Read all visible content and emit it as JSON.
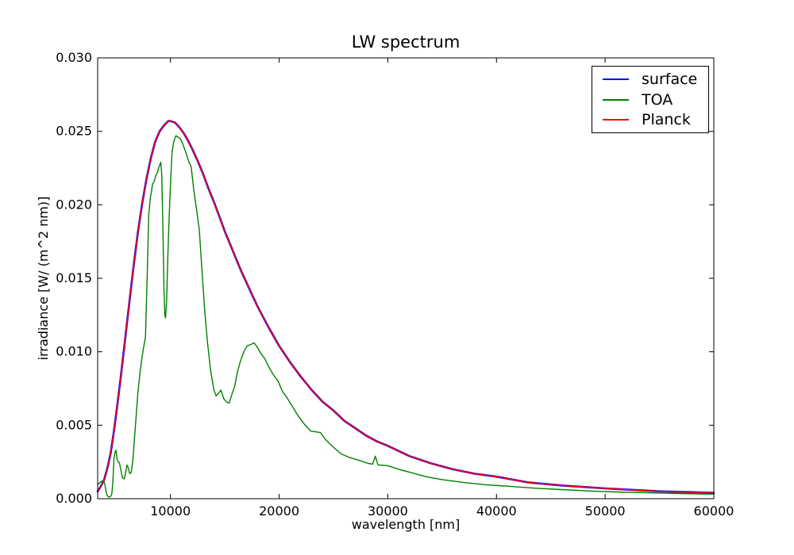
{
  "chart_data": {
    "type": "line",
    "title": "LW spectrum",
    "xlabel": "wavelength [nm]",
    "ylabel": "irradiance [W/ (m^2 nm)]",
    "xlim": [
      3300,
      60000
    ],
    "ylim": [
      0,
      0.03
    ],
    "grid": false,
    "ticks_direction": "in",
    "legend_position": "upper right",
    "x_ticks": [
      10000,
      20000,
      30000,
      40000,
      50000,
      60000
    ],
    "x_tick_labels": [
      "10000",
      "20000",
      "30000",
      "40000",
      "50000",
      "60000"
    ],
    "y_ticks": [
      0.0,
      0.005,
      0.01,
      0.015,
      0.02,
      0.025,
      0.03
    ],
    "y_tick_labels": [
      "0.000",
      "0.005",
      "0.010",
      "0.015",
      "0.020",
      "0.025",
      "0.030"
    ],
    "series": [
      {
        "name": "surface",
        "color": "#0000ff",
        "note": "coincides with Planck curve (hidden beneath it)",
        "points": [
          [
            3300,
            0.0005
          ],
          [
            3600,
            0.00085
          ],
          [
            3900,
            0.0013
          ],
          [
            4200,
            0.0021
          ],
          [
            4500,
            0.0031
          ],
          [
            4800,
            0.0046
          ],
          [
            5100,
            0.0063
          ],
          [
            5400,
            0.0081
          ],
          [
            5700,
            0.01
          ],
          [
            6000,
            0.012
          ],
          [
            6300,
            0.0139
          ],
          [
            6600,
            0.0158
          ],
          [
            7000,
            0.0181
          ],
          [
            7400,
            0.0201
          ],
          [
            7800,
            0.0218
          ],
          [
            8200,
            0.0232
          ],
          [
            8600,
            0.0243
          ],
          [
            9000,
            0.025
          ],
          [
            9400,
            0.0254
          ],
          [
            9800,
            0.0257
          ],
          [
            10000,
            0.0257
          ],
          [
            10400,
            0.0256
          ],
          [
            10800,
            0.0253
          ],
          [
            11200,
            0.0249
          ],
          [
            11600,
            0.0244
          ],
          [
            12000,
            0.0238
          ],
          [
            12500,
            0.023
          ],
          [
            13000,
            0.0221
          ],
          [
            13500,
            0.0211
          ],
          [
            14000,
            0.0202
          ],
          [
            14500,
            0.0192
          ],
          [
            15000,
            0.0182
          ],
          [
            15500,
            0.0173
          ],
          [
            16000,
            0.0164
          ],
          [
            16500,
            0.0155
          ],
          [
            17000,
            0.0147
          ],
          [
            17500,
            0.0139
          ],
          [
            18000,
            0.0131
          ],
          [
            19000,
            0.0117
          ],
          [
            20000,
            0.0104
          ],
          [
            21000,
            0.0093
          ],
          [
            22000,
            0.0083
          ],
          [
            23000,
            0.0074
          ],
          [
            24000,
            0.0066
          ],
          [
            25000,
            0.006
          ],
          [
            26000,
            0.0053
          ],
          [
            27000,
            0.0048
          ],
          [
            28000,
            0.0043
          ],
          [
            29000,
            0.0039
          ],
          [
            30000,
            0.0036
          ],
          [
            32000,
            0.0029
          ],
          [
            34000,
            0.0024
          ],
          [
            36000,
            0.002
          ],
          [
            38000,
            0.0017
          ],
          [
            40000,
            0.0015
          ],
          [
            43000,
            0.0011
          ],
          [
            46000,
            0.0009
          ],
          [
            50000,
            0.0007
          ],
          [
            55000,
            0.0005
          ],
          [
            60000,
            0.0004
          ]
        ]
      },
      {
        "name": "TOA",
        "color": "#008000",
        "points": [
          [
            3300,
            0.00095
          ],
          [
            3500,
            0.0011
          ],
          [
            3700,
            0.0012
          ],
          [
            3850,
            0.00125
          ],
          [
            3950,
            0.001
          ],
          [
            4050,
            0.0006
          ],
          [
            4150,
            0.00025
          ],
          [
            4300,
            0.00012
          ],
          [
            4450,
            0.00012
          ],
          [
            4600,
            0.0003
          ],
          [
            4700,
            0.0012
          ],
          [
            4800,
            0.0027
          ],
          [
            4900,
            0.0032
          ],
          [
            4980,
            0.0033
          ],
          [
            5100,
            0.00265
          ],
          [
            5200,
            0.0025
          ],
          [
            5300,
            0.00245
          ],
          [
            5450,
            0.0019
          ],
          [
            5600,
            0.0014
          ],
          [
            5750,
            0.00135
          ],
          [
            5900,
            0.0019
          ],
          [
            6000,
            0.0023
          ],
          [
            6100,
            0.00215
          ],
          [
            6250,
            0.0017
          ],
          [
            6400,
            0.0018
          ],
          [
            6550,
            0.0027
          ],
          [
            6700,
            0.0042
          ],
          [
            6850,
            0.0057
          ],
          [
            7000,
            0.0072
          ],
          [
            7200,
            0.0086
          ],
          [
            7400,
            0.0097
          ],
          [
            7550,
            0.0104
          ],
          [
            7700,
            0.011
          ],
          [
            7850,
            0.015
          ],
          [
            8000,
            0.0193
          ],
          [
            8150,
            0.0205
          ],
          [
            8250,
            0.0209
          ],
          [
            8350,
            0.0214
          ],
          [
            8500,
            0.0216
          ],
          [
            8650,
            0.022
          ],
          [
            8800,
            0.0222
          ],
          [
            8950,
            0.0226
          ],
          [
            9100,
            0.0229
          ],
          [
            9200,
            0.0221
          ],
          [
            9300,
            0.0185
          ],
          [
            9400,
            0.0143
          ],
          [
            9480,
            0.0125
          ],
          [
            9550,
            0.0123
          ],
          [
            9650,
            0.0135
          ],
          [
            9750,
            0.0163
          ],
          [
            9850,
            0.0185
          ],
          [
            9950,
            0.0205
          ],
          [
            10050,
            0.0222
          ],
          [
            10150,
            0.0236
          ],
          [
            10300,
            0.0243
          ],
          [
            10500,
            0.0247
          ],
          [
            10700,
            0.0246
          ],
          [
            10900,
            0.0245
          ],
          [
            11100,
            0.0242
          ],
          [
            11400,
            0.0236
          ],
          [
            11700,
            0.0229
          ],
          [
            11900,
            0.0226
          ],
          [
            12150,
            0.021
          ],
          [
            12400,
            0.0197
          ],
          [
            12650,
            0.0183
          ],
          [
            12900,
            0.0155
          ],
          [
            13150,
            0.0128
          ],
          [
            13400,
            0.0107
          ],
          [
            13700,
            0.0087
          ],
          [
            14000,
            0.0074
          ],
          [
            14200,
            0.007
          ],
          [
            14450,
            0.0072
          ],
          [
            14650,
            0.0074
          ],
          [
            14900,
            0.0068
          ],
          [
            15150,
            0.0066
          ],
          [
            15400,
            0.0065
          ],
          [
            15650,
            0.0071
          ],
          [
            15900,
            0.0076
          ],
          [
            16150,
            0.0086
          ],
          [
            16450,
            0.0094
          ],
          [
            16750,
            0.01
          ],
          [
            17050,
            0.0104
          ],
          [
            17400,
            0.0105
          ],
          [
            17700,
            0.0106
          ],
          [
            18000,
            0.0103
          ],
          [
            18300,
            0.0099
          ],
          [
            18700,
            0.0095
          ],
          [
            19100,
            0.0089
          ],
          [
            19500,
            0.0084
          ],
          [
            19900,
            0.008
          ],
          [
            20300,
            0.0073
          ],
          [
            20700,
            0.0069
          ],
          [
            21200,
            0.0063
          ],
          [
            21700,
            0.0057
          ],
          [
            22300,
            0.0051
          ],
          [
            22900,
            0.0046
          ],
          [
            23400,
            0.00455
          ],
          [
            23800,
            0.0045
          ],
          [
            24300,
            0.004
          ],
          [
            25000,
            0.0035
          ],
          [
            25700,
            0.00305
          ],
          [
            26500,
            0.0028
          ],
          [
            27400,
            0.0026
          ],
          [
            28200,
            0.0024
          ],
          [
            28600,
            0.00235
          ],
          [
            28850,
            0.0029
          ],
          [
            29100,
            0.0023
          ],
          [
            30000,
            0.00225
          ],
          [
            31000,
            0.002
          ],
          [
            32000,
            0.0018
          ],
          [
            33500,
            0.0015
          ],
          [
            35000,
            0.0013
          ],
          [
            37000,
            0.0011
          ],
          [
            39000,
            0.00095
          ],
          [
            41000,
            0.00085
          ],
          [
            43500,
            0.00072
          ],
          [
            46000,
            0.00062
          ],
          [
            48500,
            0.00053
          ],
          [
            51000,
            0.00046
          ],
          [
            54000,
            0.0004
          ],
          [
            57000,
            0.00035
          ],
          [
            60000,
            0.00031
          ]
        ]
      },
      {
        "name": "Planck",
        "color": "#ff0000",
        "points": [
          [
            3300,
            0.0005
          ],
          [
            3600,
            0.00085
          ],
          [
            3900,
            0.0013
          ],
          [
            4200,
            0.0021
          ],
          [
            4500,
            0.0031
          ],
          [
            4800,
            0.0046
          ],
          [
            5100,
            0.0063
          ],
          [
            5400,
            0.0081
          ],
          [
            5700,
            0.01
          ],
          [
            6000,
            0.012
          ],
          [
            6300,
            0.0139
          ],
          [
            6600,
            0.0158
          ],
          [
            7000,
            0.0181
          ],
          [
            7400,
            0.0201
          ],
          [
            7800,
            0.0218
          ],
          [
            8200,
            0.0232
          ],
          [
            8600,
            0.0243
          ],
          [
            9000,
            0.025
          ],
          [
            9400,
            0.0254
          ],
          [
            9800,
            0.0257
          ],
          [
            10000,
            0.0257
          ],
          [
            10400,
            0.0256
          ],
          [
            10800,
            0.0253
          ],
          [
            11200,
            0.0249
          ],
          [
            11600,
            0.0244
          ],
          [
            12000,
            0.0238
          ],
          [
            12500,
            0.023
          ],
          [
            13000,
            0.0221
          ],
          [
            13500,
            0.0211
          ],
          [
            14000,
            0.0202
          ],
          [
            14500,
            0.0192
          ],
          [
            15000,
            0.0182
          ],
          [
            15500,
            0.0173
          ],
          [
            16000,
            0.0164
          ],
          [
            16500,
            0.0155
          ],
          [
            17000,
            0.0147
          ],
          [
            17500,
            0.0139
          ],
          [
            18000,
            0.0131
          ],
          [
            19000,
            0.0117
          ],
          [
            20000,
            0.0104
          ],
          [
            21000,
            0.0093
          ],
          [
            22000,
            0.0083
          ],
          [
            23000,
            0.0074
          ],
          [
            24000,
            0.0066
          ],
          [
            25000,
            0.006
          ],
          [
            26000,
            0.0053
          ],
          [
            27000,
            0.0048
          ],
          [
            28000,
            0.0043
          ],
          [
            29000,
            0.0039
          ],
          [
            30000,
            0.0036
          ],
          [
            32000,
            0.0029
          ],
          [
            34000,
            0.0024
          ],
          [
            36000,
            0.002
          ],
          [
            38000,
            0.0017
          ],
          [
            40000,
            0.0015
          ],
          [
            43000,
            0.0011
          ],
          [
            46000,
            0.0009
          ],
          [
            50000,
            0.0007
          ],
          [
            55000,
            0.0005
          ],
          [
            60000,
            0.0004
          ]
        ]
      }
    ]
  }
}
